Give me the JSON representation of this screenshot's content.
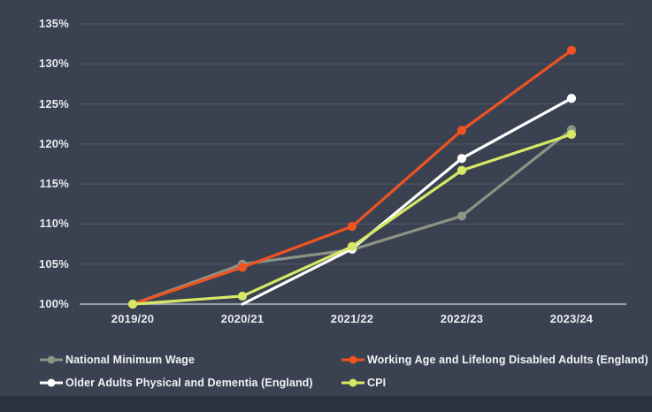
{
  "page": {
    "background_color": "#3A4150",
    "footer_bar_color": "#2C323E",
    "gridline_color": "rgba(255,255,255,0.13)",
    "baseline_color": "#979EA8",
    "axis_text_color": "#E9EBEE",
    "legend_text_color": "#F1F2F4"
  },
  "chart_data": {
    "type": "line",
    "title": "",
    "xlabel": "",
    "ylabel": "",
    "categories": [
      "2019/20",
      "2020/21",
      "2021/22",
      "2022/23",
      "2023/24"
    ],
    "series": [
      {
        "name": "National Minimum Wage",
        "color": "#8C9284",
        "values": [
          100,
          105.0,
          106.8,
          111.0,
          121.8
        ]
      },
      {
        "name": "Working Age and Lifelong Disabled Adults (England)",
        "color": "#EF5322",
        "values": [
          100,
          104.6,
          109.7,
          121.7,
          131.7
        ]
      },
      {
        "name": "Older Adults Physical and Dementia (England)",
        "color": "#FFFFFF",
        "values": [
          null,
          100,
          106.9,
          118.2,
          125.7
        ]
      },
      {
        "name": "CPI",
        "color": "#D7E866",
        "values": [
          100,
          101.0,
          107.2,
          116.7,
          121.2
        ]
      }
    ],
    "ylim": [
      100,
      135
    ],
    "ytick_step": 5,
    "ytick_labels": [
      "100%",
      "105%",
      "110%",
      "115%",
      "120%",
      "125%",
      "130%",
      "135%"
    ],
    "grid": "horizontal",
    "legend_position": "bottom",
    "legend_columns": 2
  }
}
